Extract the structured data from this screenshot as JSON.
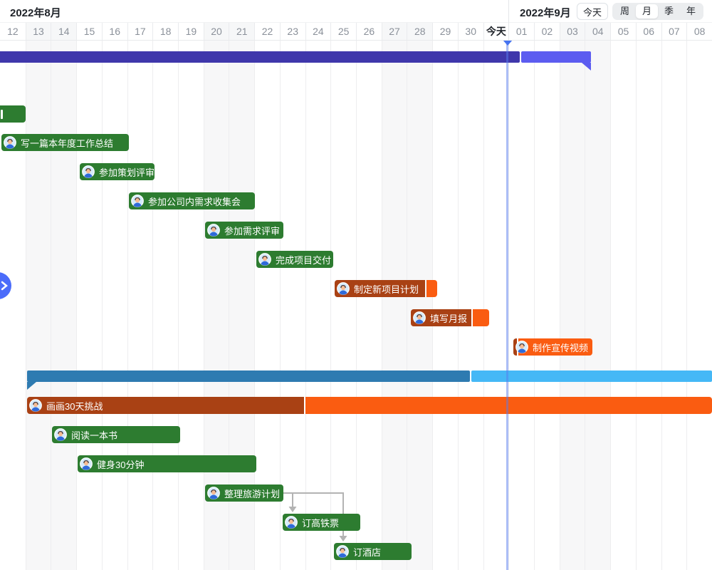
{
  "header": {
    "left_month": "2022年8月",
    "right_month": "2022年9月",
    "today_button": "今天",
    "view_options": [
      "周",
      "月",
      "季",
      "年"
    ],
    "selected_view": "月"
  },
  "timeline": {
    "days": [
      {
        "label": "12"
      },
      {
        "label": "13",
        "weekend": true
      },
      {
        "label": "14",
        "weekend": true
      },
      {
        "label": "15"
      },
      {
        "label": "16"
      },
      {
        "label": "17"
      },
      {
        "label": "18"
      },
      {
        "label": "19"
      },
      {
        "label": "20",
        "weekend": true
      },
      {
        "label": "21",
        "weekend": true
      },
      {
        "label": "22"
      },
      {
        "label": "23"
      },
      {
        "label": "24"
      },
      {
        "label": "25"
      },
      {
        "label": "26"
      },
      {
        "label": "27",
        "weekend": true
      },
      {
        "label": "28",
        "weekend": true
      },
      {
        "label": "29"
      },
      {
        "label": "30"
      },
      {
        "label": "今天",
        "today": true
      },
      {
        "label": "01"
      },
      {
        "label": "02"
      },
      {
        "label": "03",
        "weekend": true
      },
      {
        "label": "04",
        "weekend": true
      },
      {
        "label": "05"
      },
      {
        "label": "06"
      },
      {
        "label": "07"
      },
      {
        "label": "08"
      }
    ]
  },
  "summary_bars": [
    {
      "name": "summary-bar-top",
      "colors": [
        "#3f37ab",
        "#5c5cf0"
      ]
    },
    {
      "name": "summary-bar-middle",
      "colors": [
        "#2e7bb1",
        "#45b8f6"
      ]
    }
  ],
  "tasks": [
    {
      "label": "",
      "colors": [
        "#2d7c30"
      ],
      "has_avatar": false
    },
    {
      "label": "写一篇本年度工作总结",
      "colors": [
        "#2d7c30"
      ],
      "has_avatar": true
    },
    {
      "label": "参加策划评审",
      "colors": [
        "#2d7c30"
      ],
      "has_avatar": true
    },
    {
      "label": "参加公司内需求收集会",
      "colors": [
        "#2d7c30"
      ],
      "has_avatar": true
    },
    {
      "label": "参加需求评审",
      "colors": [
        "#2d7c30"
      ],
      "has_avatar": true
    },
    {
      "label": "完成项目交付",
      "colors": [
        "#2d7c30"
      ],
      "has_avatar": true
    },
    {
      "label": "制定新项目计划",
      "colors": [
        "#a94114",
        "#fa5c11"
      ],
      "has_avatar": true
    },
    {
      "label": "填写月报",
      "colors": [
        "#a94114",
        "#fa5c11"
      ],
      "has_avatar": true
    },
    {
      "label": "制作宣传视频",
      "colors": [
        "#a94114",
        "#fa5c11"
      ],
      "has_avatar": true
    },
    {
      "label": "画画30天挑战",
      "colors": [
        "#a94114",
        "#fa5c11"
      ],
      "has_avatar": true
    },
    {
      "label": "阅读一本书",
      "colors": [
        "#2d7c30"
      ],
      "has_avatar": true
    },
    {
      "label": "健身30分钟",
      "colors": [
        "#2d7c30"
      ],
      "has_avatar": true
    },
    {
      "label": "整理旅游计划",
      "colors": [
        "#2d7c30"
      ],
      "has_avatar": true
    },
    {
      "label": "订高铁票",
      "colors": [
        "#2d7c30"
      ],
      "has_avatar": true
    },
    {
      "label": "订酒店",
      "colors": [
        "#2d7c30"
      ],
      "has_avatar": true
    }
  ],
  "dependencies": [
    {
      "from": "整理旅游计划",
      "to": "订高铁票"
    },
    {
      "from": "整理旅游计划",
      "to": "订酒店"
    }
  ],
  "colors": {
    "task_green": "#2d7c30",
    "task_overdue_dark": "#a94114",
    "task_orange": "#fa5c11",
    "summary_purple_dark": "#3f37ab",
    "summary_purple_light": "#5c5cf0",
    "summary_blue_dark": "#2e7bb1",
    "summary_blue_light": "#45b8f6",
    "today_line": "#587bee",
    "today_caret": "#4673f0",
    "arrow_gray": "#b3b3b3",
    "expand_button": "#4b6cfa",
    "weekend_band": "#f7f7f8",
    "gridline": "#ededef"
  }
}
